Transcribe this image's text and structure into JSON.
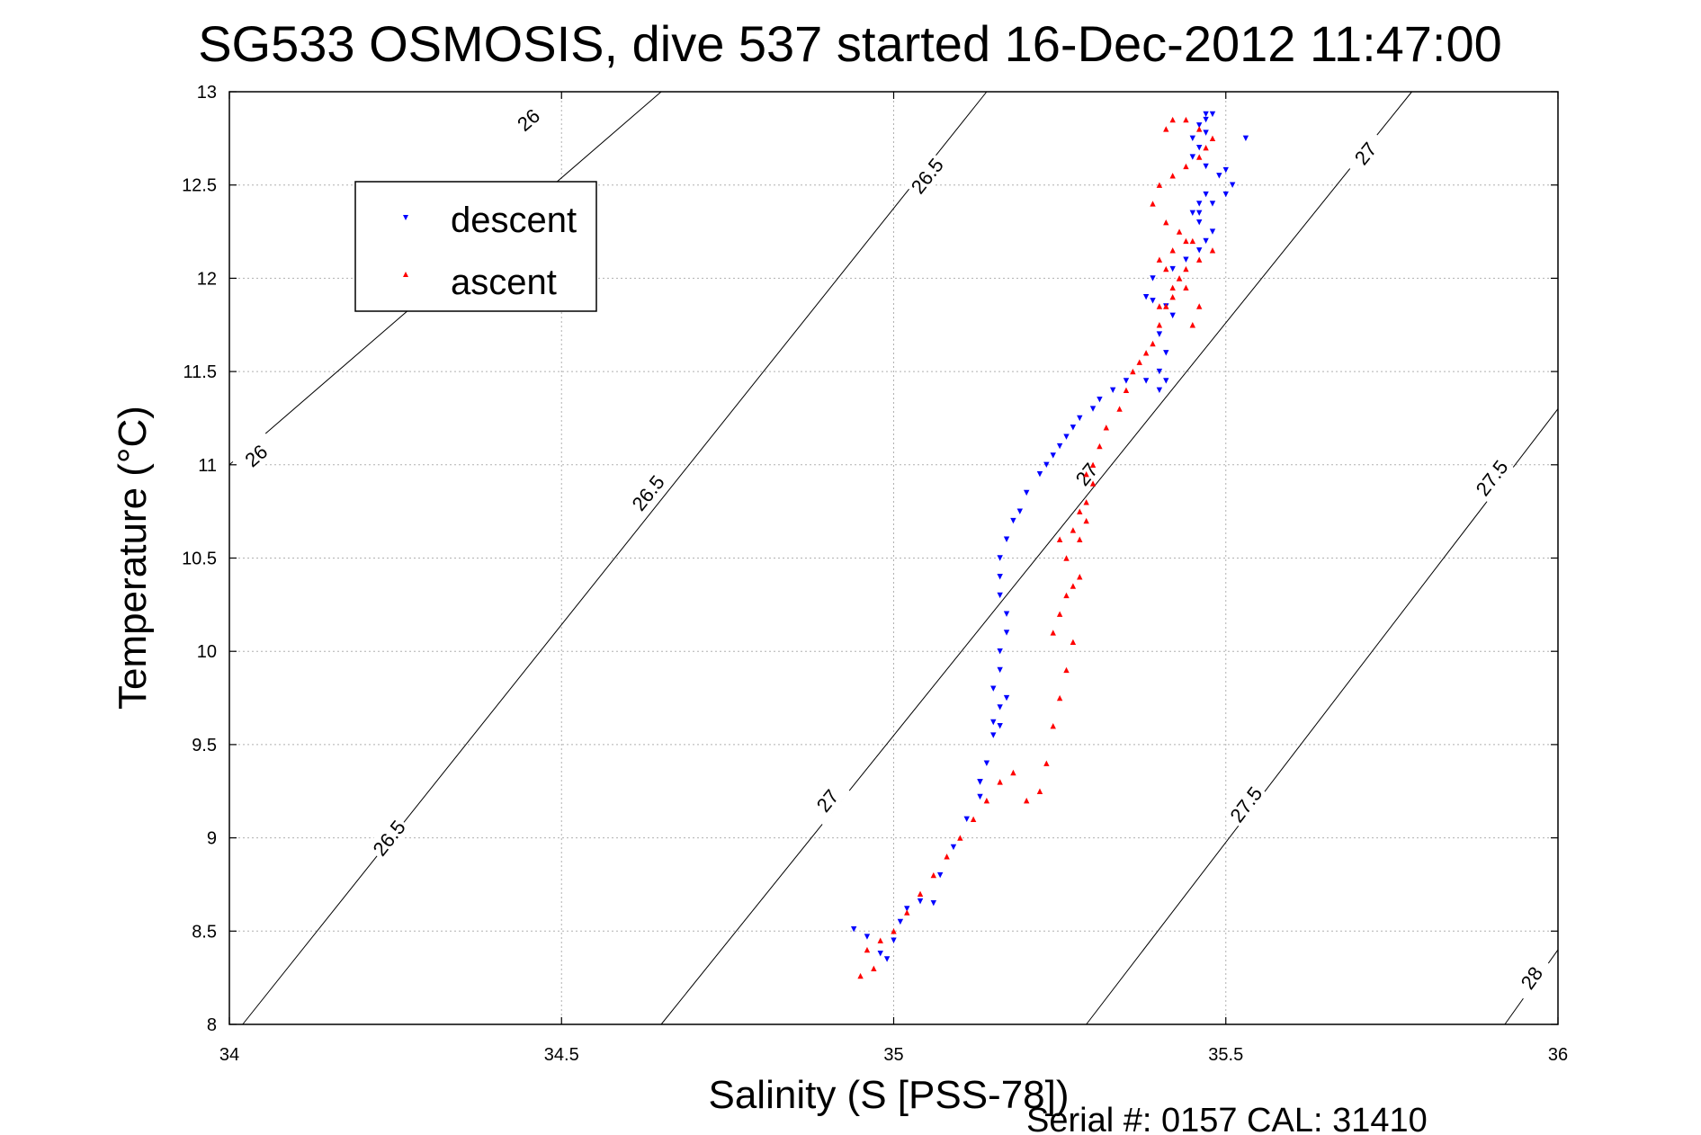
{
  "chart_data": {
    "type": "scatter",
    "title": "SG533 OSMOSIS, dive 537 started 16-Dec-2012 11:47:00",
    "xlabel": "Salinity (S [PSS-78])",
    "ylabel": "Temperature (°C)",
    "xlim": [
      34,
      36
    ],
    "ylim": [
      8,
      13
    ],
    "xticks": [
      "34",
      "34.5",
      "35",
      "35.5",
      "36"
    ],
    "yticks": [
      "8",
      "8.5",
      "9",
      "9.5",
      "10",
      "10.5",
      "11",
      "11.5",
      "12",
      "12.5",
      "13"
    ],
    "grid": true,
    "legend_position": "top-left",
    "footer": "Serial #: 0157  CAL: 31410",
    "colors": {
      "descent": "#0000ff",
      "ascent": "#ff0000",
      "contour": "#000000",
      "grid": "#b0b0b0"
    },
    "isopycnals": [
      {
        "label": "26",
        "line": [
          [
            34.0,
            11.0
          ],
          [
            34.65,
            13.0
          ]
        ],
        "label_at": [
          [
            34.45,
            12.85
          ],
          [
            34.04,
            11.05
          ]
        ]
      },
      {
        "label": "26.5",
        "line": [
          [
            34.02,
            8.0
          ],
          [
            35.14,
            13.0
          ]
        ],
        "label_at": [
          [
            35.05,
            12.55
          ],
          [
            34.63,
            10.85
          ],
          [
            34.24,
            9.0
          ]
        ]
      },
      {
        "label": "27",
        "line": [
          [
            34.65,
            8.0
          ],
          [
            35.78,
            13.0
          ]
        ],
        "label_at": [
          [
            35.71,
            12.67
          ],
          [
            35.29,
            10.95
          ],
          [
            34.9,
            9.2
          ]
        ]
      },
      {
        "label": "27.5",
        "line": [
          [
            35.29,
            8.0
          ],
          [
            36.0,
            11.3
          ]
        ],
        "label_at": [
          [
            35.9,
            10.93
          ],
          [
            35.53,
            9.18
          ]
        ]
      },
      {
        "label": "28",
        "line": [
          [
            35.92,
            8.0
          ],
          [
            36.0,
            8.4
          ]
        ],
        "label_at": [
          [
            35.96,
            8.25
          ]
        ]
      }
    ],
    "series": [
      {
        "name": "descent",
        "marker": "triangle-down",
        "x": [
          34.94,
          34.96,
          34.98,
          34.99,
          35.0,
          35.01,
          35.02,
          35.04,
          35.06,
          35.07,
          35.09,
          35.11,
          35.13,
          35.13,
          35.14,
          35.15,
          35.16,
          35.13,
          35.15,
          35.16,
          35.17,
          35.15,
          35.16,
          35.16,
          35.17,
          35.17,
          35.16,
          35.16,
          35.16,
          35.17,
          35.18,
          35.19,
          35.2,
          35.22,
          35.23,
          35.24,
          35.25,
          35.26,
          35.27,
          35.28,
          35.3,
          35.31,
          35.33,
          35.35,
          35.38,
          35.4,
          35.41,
          35.4,
          35.41,
          35.4,
          35.42,
          35.41,
          35.39,
          35.38,
          35.39,
          35.42,
          35.44,
          35.46,
          35.47,
          35.48,
          35.46,
          35.45,
          35.46,
          35.47,
          35.49,
          35.5,
          35.51,
          35.5,
          35.48,
          35.46,
          35.47,
          35.45,
          35.46,
          35.45,
          35.47,
          35.46,
          35.47,
          35.48,
          35.47,
          35.53
        ],
        "y": [
          8.51,
          8.47,
          8.38,
          8.35,
          8.45,
          8.55,
          8.62,
          8.66,
          8.65,
          8.8,
          8.95,
          9.1,
          9.22,
          9.3,
          9.4,
          9.55,
          9.6,
          9.3,
          9.62,
          9.7,
          9.75,
          9.8,
          9.9,
          10.0,
          10.1,
          10.2,
          10.3,
          10.4,
          10.5,
          10.6,
          10.7,
          10.75,
          10.85,
          10.95,
          11.0,
          11.05,
          11.1,
          11.15,
          11.2,
          11.25,
          11.3,
          11.35,
          11.4,
          11.45,
          11.45,
          11.4,
          11.45,
          11.5,
          11.6,
          11.7,
          11.8,
          11.85,
          11.88,
          11.9,
          12.0,
          12.05,
          12.1,
          12.15,
          12.2,
          12.25,
          12.3,
          12.35,
          12.4,
          12.45,
          12.55,
          12.58,
          12.5,
          12.45,
          12.4,
          12.35,
          12.6,
          12.65,
          12.7,
          12.75,
          12.78,
          12.82,
          12.85,
          12.88,
          12.88,
          12.75
        ]
      },
      {
        "name": "ascent",
        "marker": "triangle-up",
        "x": [
          34.95,
          34.97,
          34.96,
          34.98,
          35.0,
          35.02,
          35.04,
          35.06,
          35.08,
          35.1,
          35.12,
          35.14,
          35.16,
          35.18,
          35.2,
          35.22,
          35.23,
          35.24,
          35.25,
          35.26,
          35.27,
          35.24,
          35.25,
          35.26,
          35.27,
          35.28,
          35.28,
          35.29,
          35.29,
          35.3,
          35.26,
          35.25,
          35.27,
          35.28,
          35.29,
          35.3,
          35.31,
          35.32,
          35.34,
          35.35,
          35.36,
          35.37,
          35.38,
          35.39,
          35.4,
          35.41,
          35.42,
          35.43,
          35.44,
          35.46,
          35.48,
          35.45,
          35.43,
          35.41,
          35.39,
          35.4,
          35.42,
          35.44,
          35.46,
          35.47,
          35.48,
          35.46,
          35.44,
          35.42,
          35.41,
          35.4,
          35.42,
          35.44,
          35.43,
          35.41,
          35.4,
          35.42,
          35.44,
          35.45,
          35.46
        ],
        "y": [
          8.26,
          8.3,
          8.4,
          8.45,
          8.5,
          8.6,
          8.7,
          8.8,
          8.9,
          9.0,
          9.1,
          9.2,
          9.3,
          9.35,
          9.2,
          9.25,
          9.4,
          9.6,
          9.75,
          9.9,
          10.05,
          10.1,
          10.2,
          10.3,
          10.35,
          10.4,
          10.6,
          10.7,
          10.8,
          10.9,
          10.5,
          10.6,
          10.65,
          10.75,
          10.95,
          11.0,
          11.1,
          11.2,
          11.3,
          11.4,
          11.5,
          11.55,
          11.6,
          11.65,
          11.75,
          11.85,
          11.95,
          12.0,
          12.05,
          12.1,
          12.15,
          12.2,
          12.25,
          12.3,
          12.4,
          12.5,
          12.55,
          12.6,
          12.65,
          12.7,
          12.75,
          12.8,
          12.85,
          12.85,
          12.8,
          11.85,
          11.9,
          11.95,
          12.0,
          12.05,
          12.1,
          12.15,
          12.2,
          11.75,
          11.85
        ]
      }
    ]
  }
}
